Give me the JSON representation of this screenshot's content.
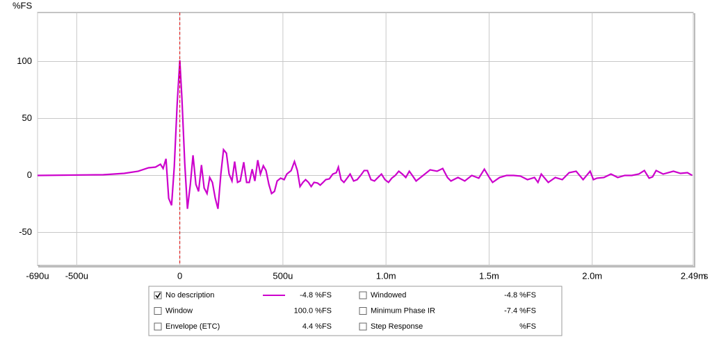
{
  "chart_data": {
    "type": "line",
    "ylabel": "%FS",
    "xlabel": "s",
    "xlim": [
      -0.00069,
      0.00249
    ],
    "xticks": [
      {
        "value": -0.00069,
        "label": "-690u"
      },
      {
        "value": -0.0005,
        "label": "-500u"
      },
      0,
      {
        "value": 0.0005,
        "label": "500u"
      },
      {
        "value": 0.001,
        "label": "1.0m"
      },
      {
        "value": 0.0015,
        "label": "1.5m"
      },
      {
        "value": 0.002,
        "label": "2.0m"
      },
      {
        "value": 0.00249,
        "label": "2.49m"
      }
    ],
    "ylim": [
      -79,
      143
    ],
    "yticks": [
      -50,
      0,
      50,
      100
    ],
    "grid": true,
    "cursor_x": 0,
    "cursor_color": "#e00000",
    "series": [
      {
        "name": "No description",
        "color": "#cc00cc",
        "readout": "-4.8 %FS",
        "checked": true,
        "x": [
          -0.00069,
          -0.000371,
          -0.00027,
          -0.000202,
          -0.000152,
          -0.000118,
          -9.4e-05,
          -8.1e-05,
          -6.7e-05,
          -5.4e-05,
          -4e-05,
          -2.7e-05,
          -1.3e-05,
          0,
          1e-05,
          2.4e-05,
          3.7e-05,
          5.1e-05,
          6.4e-05,
          7.8e-05,
          9.1e-05,
          0.000105,
          0.000118,
          0.000132,
          0.000145,
          0.000158,
          0.000172,
          0.000185,
          0.000199,
          0.000212,
          0.000226,
          0.000239,
          0.000253,
          0.000266,
          0.00028,
          0.000293,
          0.00031,
          0.000324,
          0.000337,
          0.000351,
          0.000364,
          0.000378,
          0.000391,
          0.000405,
          0.000418,
          0.000432,
          0.000445,
          0.000459,
          0.000472,
          0.000489,
          0.000506,
          0.000519,
          0.00054,
          0.000556,
          0.00057,
          0.000583,
          0.000597,
          0.00061,
          0.000624,
          0.000637,
          0.000651,
          0.000668,
          0.000681,
          0.000695,
          0.000708,
          0.000725,
          0.000742,
          0.000759,
          0.000769,
          0.000782,
          0.000796,
          0.000809,
          0.000826,
          0.000843,
          0.00086,
          0.000877,
          0.000894,
          0.00091,
          0.000927,
          0.000944,
          0.000961,
          0.000978,
          0.000995,
          0.001012,
          0.001028,
          0.001045,
          0.001062,
          0.001079,
          0.001096,
          0.001113,
          0.00113,
          0.001146,
          0.00118,
          0.001214,
          0.001248,
          0.001275,
          0.001298,
          0.001315,
          0.001349,
          0.001382,
          0.001416,
          0.00145,
          0.001477,
          0.001501,
          0.001517,
          0.001551,
          0.001585,
          0.001619,
          0.001652,
          0.001686,
          0.00172,
          0.001737,
          0.001753,
          0.001787,
          0.001821,
          0.001855,
          0.001888,
          0.001922,
          0.001956,
          0.00199,
          0.002006,
          0.002023,
          0.002057,
          0.002091,
          0.002124,
          0.002158,
          0.002192,
          0.002226,
          0.002253,
          0.002276,
          0.002293,
          0.00231,
          0.002344,
          0.002394,
          0.002428,
          0.002462,
          0.002485
        ],
        "values": [
          0,
          0.6,
          1.8,
          3.7,
          6.7,
          7.3,
          9.8,
          6.1,
          14.6,
          -20.1,
          -26.2,
          7.3,
          62.2,
          101,
          68.3,
          10.4,
          -29.3,
          -7.9,
          17.7,
          -7.9,
          -14,
          9.1,
          -11,
          -15.9,
          -1.8,
          -6.1,
          -20.1,
          -29.3,
          1.2,
          22.6,
          19.5,
          1.2,
          -4.9,
          12.2,
          -6.1,
          -4.9,
          11.6,
          -6.1,
          -6.1,
          5.5,
          -4.9,
          13.4,
          1.2,
          8.5,
          4.3,
          -7.9,
          -15.9,
          -14,
          -4.9,
          -2.4,
          -3.7,
          1.2,
          4.3,
          12.2,
          4.3,
          -9.8,
          -6.1,
          -3.7,
          -6.1,
          -9.8,
          -6.1,
          -6.7,
          -8.5,
          -6.1,
          -3.7,
          -3,
          1.2,
          2.4,
          7.3,
          -3.7,
          -6.1,
          -3,
          1.2,
          -4.9,
          -3.7,
          0,
          4.3,
          4.3,
          -3.7,
          -4.9,
          -1.8,
          1.2,
          -3.7,
          -6.1,
          -2.4,
          0,
          3.7,
          1.2,
          -1.8,
          3.7,
          -0.6,
          -4.9,
          0,
          4.9,
          3.7,
          6.1,
          -1.8,
          -4.9,
          -1.8,
          -4.9,
          0,
          -2.4,
          5.5,
          -1.8,
          -6.1,
          -1.8,
          0,
          0,
          -0.6,
          -3.7,
          -1.8,
          -6.1,
          1.2,
          -6.1,
          -1.8,
          -3.7,
          2.4,
          3.7,
          -3.7,
          3.7,
          -3.7,
          -2.4,
          -1.8,
          1.2,
          -1.8,
          0,
          0,
          1.2,
          4.3,
          -2.4,
          -1.2,
          4.3,
          1.2,
          3.7,
          1.8,
          2.4,
          0
        ]
      }
    ],
    "other_traces": [
      {
        "name": "Windowed",
        "color": "#cc00cc",
        "readout": "-4.8 %FS",
        "readout_color": "#cc00cc",
        "checked": false
      },
      {
        "name": "Window",
        "color": "#0000cc",
        "readout": "100.0 %FS",
        "readout_color": "#0000cc",
        "checked": false
      },
      {
        "name": "Minimum Phase IR",
        "color": "#808080",
        "readout": "-7.4 %FS",
        "readout_color": "#808080",
        "checked": false
      },
      {
        "name": "Envelope (ETC)",
        "color": "#660066",
        "readout": "4.4 %FS",
        "readout_color": "#660066",
        "checked": false
      },
      {
        "name": "Step Response",
        "color": "#660066",
        "readout": "%FS",
        "readout_color": "#660066",
        "checked": false
      }
    ]
  }
}
